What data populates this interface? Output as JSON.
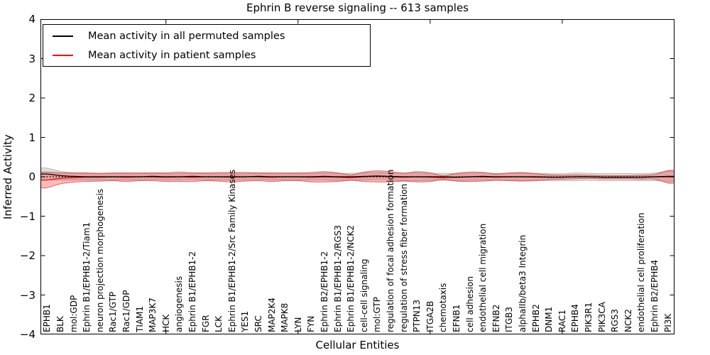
{
  "figure": {
    "title": "Ephrin B reverse signaling -- 613 samples",
    "xlabel": "Cellular Entities",
    "ylabel": "Inferred Activity",
    "background": "#ffffff"
  },
  "legend": {
    "entries": [
      {
        "label": "Mean activity in all permuted samples",
        "color": "#000000"
      },
      {
        "label": "Mean activity in patient samples",
        "color": "#ff0000"
      }
    ]
  },
  "axes": {
    "yticks": [
      {
        "label": "4",
        "value": 4
      },
      {
        "label": "3",
        "value": 3
      },
      {
        "label": "2",
        "value": 2
      },
      {
        "label": "1",
        "value": 1
      },
      {
        "label": "0",
        "value": 0
      },
      {
        "label": "−1",
        "value": -1
      },
      {
        "label": "−2",
        "value": -2
      },
      {
        "label": "−3",
        "value": -3
      },
      {
        "label": "−4",
        "value": -4
      }
    ],
    "xtick_category_indices": [
      9,
      19,
      29,
      39
    ],
    "frame_color": "#000000"
  },
  "chart_data": {
    "type": "line",
    "title": "Ephrin B reverse signaling -- 613 samples",
    "xlabel": "Cellular Entities",
    "ylabel": "Inferred Activity",
    "ylim": [
      -4,
      4
    ],
    "grid": false,
    "legend_position": "upper left",
    "baseline": 0,
    "categories": [
      "EPHB1",
      "BLK",
      "mol:GDP",
      "Ephrin B1/EPHB1-2/Tiam1",
      "neuron projection morphogenesis",
      "Rac1/GTP",
      "Rac1/GDP",
      "TIAM1",
      "MAP3K7",
      "HCK",
      "angiogenesis",
      "Ephrin B1/EPHB1-2",
      "FGR",
      "LCK",
      "Ephrin B1/EPHB1-2/Src Family Kinases",
      "YES1",
      "SRC",
      "MAP2K4",
      "MAPK8",
      "LYN",
      "FYN",
      "Ephrin B2/EPHB1-2",
      "Ephrin B1/EPHB1-2/RGS3",
      "Ephrin B1/EPHB1-2/NCK2",
      "cell-cell signaling",
      "mol:GTP",
      "regulation of focal adhesion formation",
      "regulation of stress fiber formation",
      "PTPN13",
      "ITGA2B",
      "chemotaxis",
      "EFNB1",
      "cell adhesion",
      "endothelial cell migration",
      "EFNB2",
      "ITGB3",
      "alphaIIb/beta3 Integrin",
      "EPHB2",
      "DNM1",
      "RAC1",
      "EPHB4",
      "PIK3R1",
      "PIK3CA",
      "RGS3",
      "NCK2",
      "endothelial cell proliferation",
      "Ephrin B2/EPHB4",
      "PI3K"
    ],
    "series": [
      {
        "name": "Mean activity in all permuted samples",
        "color": "#000000",
        "style": "solid",
        "values": [
          0.07,
          0.03,
          0.01,
          0,
          0,
          0,
          0,
          0,
          0.01,
          0,
          0,
          0.01,
          0,
          0,
          0,
          0,
          0.01,
          0,
          0,
          0,
          0,
          0.01,
          0,
          0,
          0.01,
          0.02,
          0.01,
          0,
          0,
          0,
          0,
          -0.01,
          0,
          0.01,
          0,
          0,
          0,
          0,
          -0.01,
          -0.01,
          0,
          0,
          -0.01,
          -0.01,
          -0.01,
          -0.01,
          0,
          0.01
        ]
      },
      {
        "name": "Mean activity in patient samples",
        "color": "#ff0000",
        "style": "solid",
        "values": [
          -0.08,
          -0.04,
          -0.02,
          -0.01,
          -0.01,
          0,
          -0.01,
          0,
          0,
          -0.01,
          0,
          -0.01,
          0,
          0,
          -0.01,
          0,
          0,
          -0.01,
          0,
          0,
          -0.01,
          0,
          -0.01,
          -0.02,
          0,
          0.01,
          0,
          -0.01,
          0,
          -0.01,
          -0.02,
          -0.01,
          0,
          0,
          -0.01,
          0,
          0,
          -0.01,
          -0.01,
          -0.01,
          0,
          0,
          -0.01,
          -0.01,
          -0.01,
          -0.01,
          0,
          0
        ]
      }
    ],
    "bands": [
      {
        "name": "spread of permuted samples",
        "center_series": 0,
        "fill": "rgba(128,128,128,0.25)",
        "edge": "rgba(90,90,90,0.35)",
        "half_widths": [
          0.15,
          0.11,
          0.09,
          0.08,
          0.08,
          0.08,
          0.08,
          0.08,
          0.08,
          0.08,
          0.08,
          0.08,
          0.08,
          0.08,
          0.08,
          0.08,
          0.08,
          0.08,
          0.08,
          0.08,
          0.08,
          0.09,
          0.09,
          0.09,
          0.09,
          0.09,
          0.09,
          0.1,
          0.1,
          0.09,
          0.09,
          0.09,
          0.09,
          0.09,
          0.09,
          0.09,
          0.09,
          0.09,
          0.09,
          0.09,
          0.1,
          0.09,
          0.09,
          0.09,
          0.09,
          0.09,
          0.1,
          0.13
        ]
      },
      {
        "name": "spread of patient samples",
        "center_series": 1,
        "fill": "rgba(235,45,45,0.32)",
        "edge": "rgba(200,25,25,0.6)",
        "half_widths": [
          0.2,
          0.14,
          0.12,
          0.11,
          0.1,
          0.1,
          0.11,
          0.1,
          0.1,
          0.11,
          0.12,
          0.11,
          0.1,
          0.11,
          0.12,
          0.11,
          0.1,
          0.11,
          0.1,
          0.1,
          0.12,
          0.13,
          0.11,
          0.07,
          0.12,
          0.14,
          0.13,
          0.1,
          0.13,
          0.11,
          0.05,
          0.1,
          0.12,
          0.11,
          0.08,
          0.1,
          0.11,
          0.09,
          0.06,
          0.05,
          0.05,
          0.04,
          0.04,
          0.04,
          0.04,
          0.05,
          0.06,
          0.16
        ]
      }
    ],
    "baseline_style": {
      "color": "#000000",
      "dash": "dotted"
    }
  }
}
